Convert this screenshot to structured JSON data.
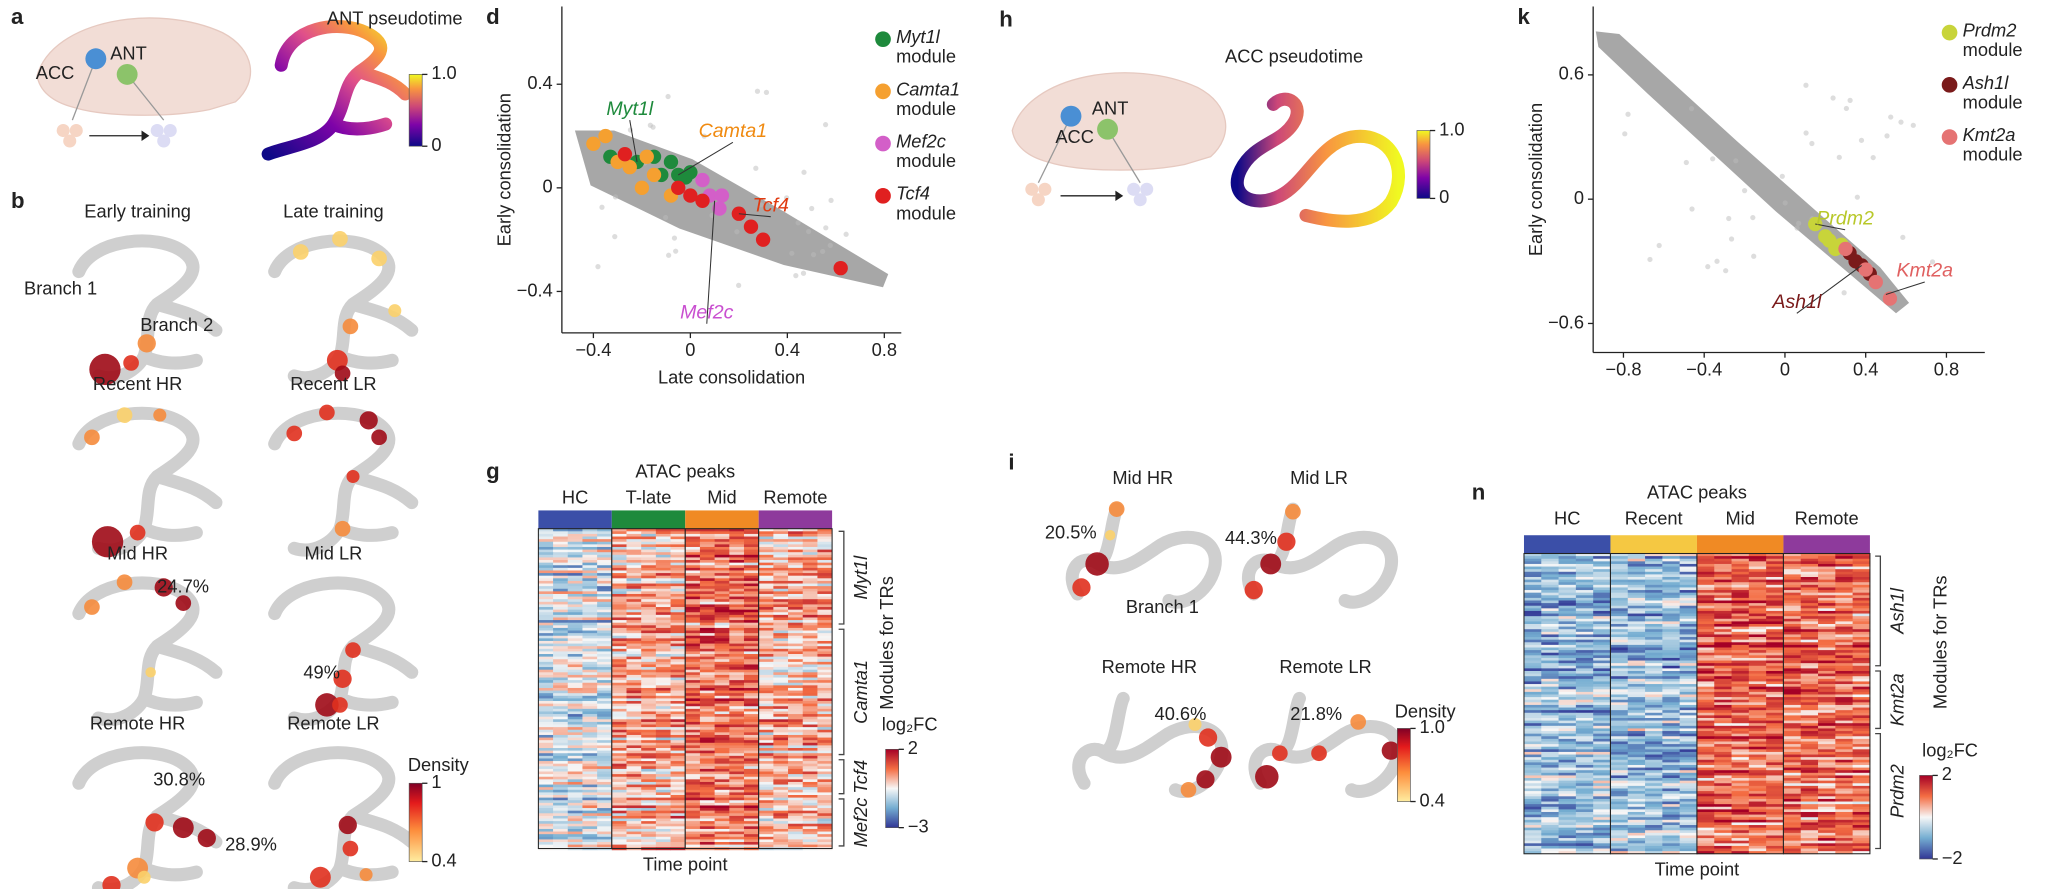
{
  "panels": {
    "a": {
      "letter": "a",
      "regions": [
        "ACC",
        "ANT"
      ],
      "title": "ANT pseudotime",
      "colorbar_ticks": [
        {
          "value": 1,
          "label": "1.0"
        },
        0
      ]
    },
    "b": {
      "letter": "b",
      "maps": [
        "Early training",
        "Late training",
        "Recent HR",
        "Recent LR",
        "Mid HR",
        "Mid LR",
        "Remote HR",
        "Remote LR"
      ],
      "annotations": [
        "Branch 1",
        "Branch 2",
        "24.7%",
        "49%",
        "30.8%",
        "28.9%"
      ],
      "colorbar_title": "Density",
      "colorbar_ticks": [
        1,
        0.4
      ]
    },
    "g": {
      "letter": "g",
      "title": "ATAC peaks",
      "columns": [
        "HC",
        "T-late",
        "Mid",
        "Remote"
      ],
      "column_colors": [
        "#3b4fa8",
        "#1e8a3c",
        "#f08a24",
        "#8e3a9c"
      ],
      "modules": [
        "Myt1l",
        "Camta1",
        "Tcf4",
        "Mef2c"
      ],
      "modules_title": "Modules for TRs",
      "xlabel": "Time point",
      "colorbar_title": "log₂FC",
      "colorbar_ticks": [
        2,
        {
          "value": -3,
          "label": "−3"
        }
      ]
    },
    "h": {
      "letter": "h",
      "regions": [
        "ACC",
        "ANT"
      ],
      "title": "ACC pseudotime",
      "colorbar_ticks": [
        {
          "value": 1,
          "label": "1.0"
        },
        0
      ]
    },
    "i": {
      "letter": "i",
      "maps": [
        "Mid HR",
        "Mid LR",
        "Remote HR",
        "Remote LR"
      ],
      "annotations": [
        "20.5%",
        "44.3%",
        "Branch 1",
        "40.6%",
        "21.8%"
      ],
      "colorbar_title": "Density",
      "colorbar_ticks": [
        {
          "value": 1,
          "label": "1.0"
        },
        0.4
      ]
    },
    "n": {
      "letter": "n",
      "title": "ATAC peaks",
      "columns": [
        "HC",
        "Recent",
        "Mid",
        "Remote"
      ],
      "column_colors": [
        "#3b4fa8",
        "#f5c842",
        "#f08a24",
        "#8e3a9c"
      ],
      "modules": [
        "Ash1l",
        "Kmt2a",
        "Prdm2"
      ],
      "modules_title": "Modules for TRs",
      "xlabel": "Time point",
      "colorbar_title": "log₂FC",
      "colorbar_ticks": [
        2,
        {
          "value": -2,
          "label": "−2"
        }
      ]
    }
  },
  "chart_data": [
    {
      "type": "scatter",
      "panel": "d",
      "xlabel": "Late consolidation",
      "ylabel": "Early consolidation",
      "xlim": [
        -0.53,
        0.87
      ],
      "ylim": [
        -0.56,
        0.7
      ],
      "xticks": [
        {
          "value": -0.4,
          "label": "−0.4"
        },
        0,
        0.4,
        0.8
      ],
      "yticks": [
        0.4,
        0,
        {
          "value": -0.4,
          "label": "−0.4"
        }
      ],
      "series": [
        {
          "name": "Myt1l module",
          "color": "#1e8a3c",
          "x": [
            -0.33,
            -0.22,
            -0.15,
            -0.12,
            -0.08,
            -0.05,
            -0.02,
            0.0
          ],
          "y": [
            0.12,
            0.1,
            0.12,
            0.05,
            0.1,
            0.05,
            0.04,
            0.06
          ]
        },
        {
          "name": "Camta1 module",
          "color": "#f5a030",
          "x": [
            -0.4,
            -0.35,
            -0.3,
            -0.25,
            -0.18,
            -0.15,
            -0.08,
            -0.2
          ],
          "y": [
            0.17,
            0.2,
            0.1,
            0.08,
            0.12,
            0.05,
            -0.03,
            0.0
          ]
        },
        {
          "name": "Mef2c module",
          "color": "#d35fc8",
          "x": [
            0.05,
            0.08,
            0.13,
            0.12
          ],
          "y": [
            0.03,
            -0.03,
            -0.03,
            -0.08
          ]
        },
        {
          "name": "Tcf4 module",
          "color": "#e02020",
          "x": [
            -0.27,
            -0.05,
            0.0,
            0.05,
            0.2,
            0.25,
            0.3,
            0.62
          ],
          "y": [
            0.13,
            0.0,
            -0.03,
            -0.05,
            -0.1,
            -0.15,
            -0.2,
            -0.31
          ]
        }
      ],
      "annotations": [
        {
          "text": "Myt1l",
          "color": "#1e8a3c"
        },
        {
          "text": "Camta1",
          "color": "#f08a10"
        },
        {
          "text": "Tcf4",
          "color": "#e03a10"
        },
        {
          "text": "Mef2c",
          "color": "#c94fd0"
        }
      ]
    },
    {
      "type": "scatter",
      "panel": "k",
      "ylabel": "Early consolidation",
      "xlim": [
        -0.95,
        0.99
      ],
      "ylim": [
        -0.74,
        0.93
      ],
      "xticks": [
        {
          "value": -0.8,
          "label": "−0.8"
        },
        {
          "value": -0.4,
          "label": "−0.4"
        },
        0,
        0.4,
        0.8
      ],
      "yticks": [
        0.6,
        0,
        {
          "value": -0.6,
          "label": "−0.6"
        }
      ],
      "series": [
        {
          "name": "Prdm2 module",
          "color": "#c8d43a",
          "x": [
            0.15,
            0.2,
            0.22,
            0.25,
            0.28
          ],
          "y": [
            -0.12,
            -0.18,
            -0.2,
            -0.24,
            -0.22
          ]
        },
        {
          "name": "Ash1l module",
          "color": "#7a1a1a",
          "x": [
            0.32,
            0.35,
            0.38,
            0.42
          ],
          "y": [
            -0.26,
            -0.3,
            -0.32,
            -0.36
          ]
        },
        {
          "name": "Kmt2a module",
          "color": "#e57373",
          "x": [
            0.3,
            0.4,
            0.45,
            0.52
          ],
          "y": [
            -0.24,
            -0.34,
            -0.4,
            -0.48
          ]
        }
      ],
      "annotations": [
        {
          "text": "Prdm2",
          "color": "#b8c82a"
        },
        {
          "text": "Kmt2a",
          "color": "#e06060"
        },
        {
          "text": "Ash1l",
          "color": "#7a1a1a"
        }
      ]
    }
  ]
}
